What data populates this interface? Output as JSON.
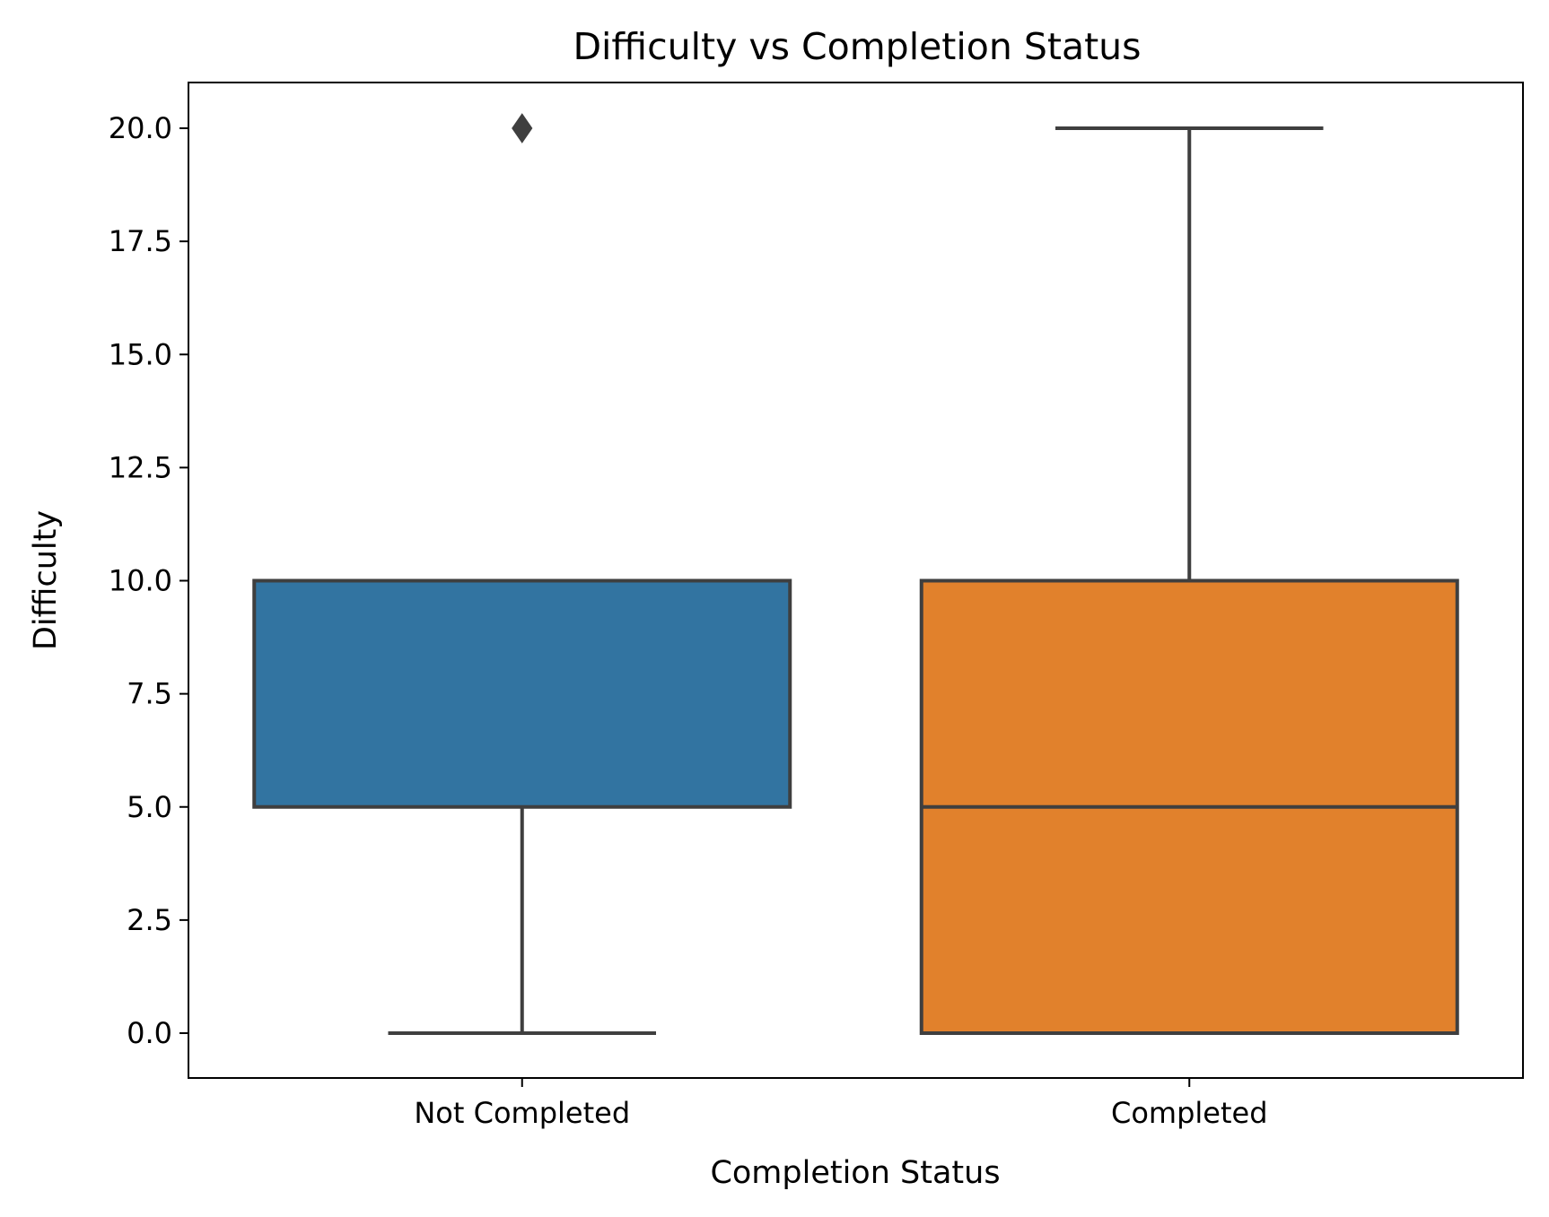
{
  "chart_data": {
    "type": "box",
    "title": "Difficulty vs Completion Status",
    "xlabel": "Completion Status",
    "ylabel": "Difficulty",
    "ylim": [
      -1,
      21
    ],
    "yticks": [
      "0.0",
      "2.5",
      "5.0",
      "7.5",
      "10.0",
      "12.5",
      "15.0",
      "17.5",
      "20.0"
    ],
    "ytick_values": [
      0,
      2.5,
      5,
      7.5,
      10,
      12.5,
      15,
      17.5,
      20
    ],
    "categories": [
      "Not Completed",
      "Completed"
    ],
    "boxes": [
      {
        "category": "Not Completed",
        "whisker_low": 0,
        "q1": 5,
        "median": 10,
        "q3": 10,
        "whisker_high": 10,
        "outliers": [
          20
        ],
        "color": "#3274a1"
      },
      {
        "category": "Completed",
        "whisker_low": 0,
        "q1": 0,
        "median": 5,
        "q3": 10,
        "whisker_high": 20,
        "outliers": [],
        "color": "#e1812c"
      }
    ],
    "grid": false,
    "line_color": "#3f3f3f"
  }
}
